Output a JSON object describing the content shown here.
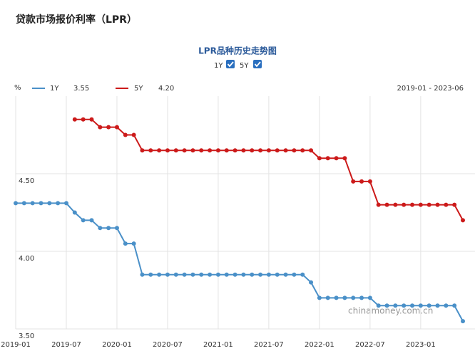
{
  "chart_data": {
    "type": "line",
    "title": "贷款市场报价利率（LPR）",
    "subtitle": "LPR品种历史走势图",
    "y_unit": "%",
    "date_range": "2019-01 - 2023-06",
    "watermark": "chinamoney.com.cn",
    "x": [
      "2019-01",
      "2019-02",
      "2019-03",
      "2019-04",
      "2019-05",
      "2019-06",
      "2019-07",
      "2019-08",
      "2019-09",
      "2019-10",
      "2019-11",
      "2019-12",
      "2020-01",
      "2020-02",
      "2020-03",
      "2020-04",
      "2020-05",
      "2020-06",
      "2020-07",
      "2020-08",
      "2020-09",
      "2020-10",
      "2020-11",
      "2020-12",
      "2021-01",
      "2021-02",
      "2021-03",
      "2021-04",
      "2021-05",
      "2021-06",
      "2021-07",
      "2021-08",
      "2021-09",
      "2021-10",
      "2021-11",
      "2021-12",
      "2022-01",
      "2022-02",
      "2022-03",
      "2022-04",
      "2022-05",
      "2022-06",
      "2022-07",
      "2022-08",
      "2022-09",
      "2022-10",
      "2022-11",
      "2022-12",
      "2023-01",
      "2023-02",
      "2023-03",
      "2023-04",
      "2023-05",
      "2023-06"
    ],
    "xticks": [
      "2019-01",
      "2019-07",
      "2020-01",
      "2020-07",
      "2021-01",
      "2021-07",
      "2022-01",
      "2022-07",
      "2023-01"
    ],
    "ylim": [
      3.5,
      5.0
    ],
    "yticks": [
      {
        "value": 3.5,
        "label": "3.50"
      },
      {
        "value": 4.0,
        "label": "4.00"
      },
      {
        "value": 4.5,
        "label": "4.50"
      }
    ],
    "grid": true,
    "series": [
      {
        "name": "1Y",
        "color": "#4a90c8",
        "legend_value": "3.55",
        "values": [
          4.31,
          4.31,
          4.31,
          4.31,
          4.31,
          4.31,
          4.31,
          4.25,
          4.2,
          4.2,
          4.15,
          4.15,
          4.15,
          4.05,
          4.05,
          3.85,
          3.85,
          3.85,
          3.85,
          3.85,
          3.85,
          3.85,
          3.85,
          3.85,
          3.85,
          3.85,
          3.85,
          3.85,
          3.85,
          3.85,
          3.85,
          3.85,
          3.85,
          3.85,
          3.85,
          3.8,
          3.7,
          3.7,
          3.7,
          3.7,
          3.7,
          3.7,
          3.7,
          3.65,
          3.65,
          3.65,
          3.65,
          3.65,
          3.65,
          3.65,
          3.65,
          3.65,
          3.65,
          3.55
        ]
      },
      {
        "name": "5Y",
        "color": "#cc1a1a",
        "legend_value": "4.20",
        "values": [
          null,
          null,
          null,
          null,
          null,
          null,
          null,
          4.85,
          4.85,
          4.85,
          4.8,
          4.8,
          4.8,
          4.75,
          4.75,
          4.65,
          4.65,
          4.65,
          4.65,
          4.65,
          4.65,
          4.65,
          4.65,
          4.65,
          4.65,
          4.65,
          4.65,
          4.65,
          4.65,
          4.65,
          4.65,
          4.65,
          4.65,
          4.65,
          4.65,
          4.65,
          4.6,
          4.6,
          4.6,
          4.6,
          4.45,
          4.45,
          4.45,
          4.3,
          4.3,
          4.3,
          4.3,
          4.3,
          4.3,
          4.3,
          4.3,
          4.3,
          4.3,
          4.2
        ]
      }
    ]
  }
}
